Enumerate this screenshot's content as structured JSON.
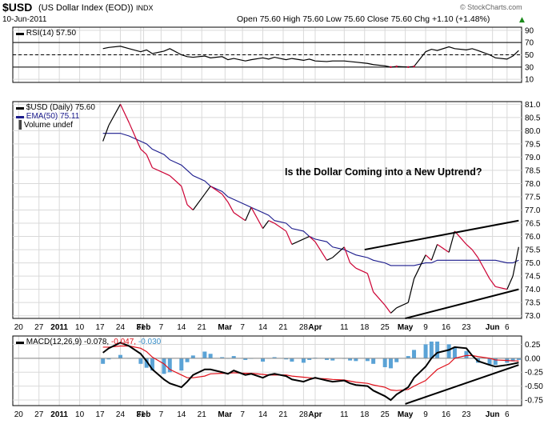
{
  "header": {
    "symbol": "$USD",
    "name": "(US Dollar Index (EOD))",
    "exchange": "INDX",
    "date": "10-Jun-2011",
    "quote": "Open 75.60  High 75.60  Low 75.60  Close 75.60  Chg +1.10 (+1.48%)",
    "quote_arrow": "▲",
    "brand": "© StockCharts.com"
  },
  "colors": {
    "price_up": "#000000",
    "price_down": "#cc0033",
    "ema": "#1a1a8c",
    "macd_line": "#000000",
    "signal_line": "#e0101a",
    "histogram": "#5ba3d6",
    "grid": "#d9d9d9",
    "frame": "#000000"
  },
  "chart_data": [
    {
      "type": "line",
      "panel": "rsi",
      "legend": "RSI(14) 57.50",
      "y_ticks": [
        10,
        30,
        50,
        70,
        90
      ],
      "ylim": [
        5,
        95
      ],
      "reference_lines": [
        30,
        50,
        70
      ],
      "x": [
        "Jan 18",
        "Jan 20",
        "Jan 24",
        "Jan 27",
        "Jan 31",
        "Feb 2",
        "Feb 4",
        "Feb 8",
        "Feb 10",
        "Feb 14",
        "Feb 16",
        "Feb 18",
        "Feb 22",
        "Feb 24",
        "Feb 28",
        "Mar 2",
        "Mar 4",
        "Mar 8",
        "Mar 10",
        "Mar 14",
        "Mar 16",
        "Mar 18",
        "Mar 22",
        "Mar 24",
        "Mar 28",
        "Mar 30",
        "Apr 1",
        "Apr 5",
        "Apr 7",
        "Apr 11",
        "Apr 13",
        "Apr 15",
        "Apr 19",
        "Apr 21",
        "Apr 25",
        "Apr 27",
        "Apr 29",
        "May 3",
        "May 5",
        "May 9",
        "May 11",
        "May 13",
        "May 17",
        "May 19",
        "May 23",
        "May 25",
        "May 27",
        "May 31",
        "Jun 2",
        "Jun 6",
        "Jun 8",
        "Jun 10"
      ],
      "values": [
        60,
        62,
        64,
        60,
        55,
        58,
        52,
        56,
        60,
        50,
        47,
        46,
        48,
        45,
        47,
        42,
        44,
        40,
        42,
        45,
        43,
        46,
        42,
        44,
        41,
        43,
        40,
        39,
        40,
        40,
        39,
        38,
        36,
        34,
        32,
        30,
        31,
        30,
        31,
        55,
        59,
        57,
        63,
        60,
        58,
        60,
        57,
        50,
        45,
        43,
        48,
        57
      ]
    },
    {
      "type": "line",
      "panel": "price",
      "legend": [
        "$USD (Daily) 75.60",
        "EMA(50) 75.11",
        "Volume undef"
      ],
      "y_ticks": [
        73.0,
        73.5,
        74.0,
        74.5,
        75.0,
        75.5,
        76.0,
        76.5,
        77.0,
        77.5,
        78.0,
        78.5,
        79.0,
        79.5,
        80.0,
        80.5,
        81.0
      ],
      "ylim": [
        72.9,
        81.1
      ],
      "annotation": "Is the Dollar Coming into a New Uptrend?",
      "x": [
        "Jan 18",
        "Jan 20",
        "Jan 24",
        "Jan 27",
        "Jan 31",
        "Feb 2",
        "Feb 4",
        "Feb 8",
        "Feb 10",
        "Feb 14",
        "Feb 16",
        "Feb 18",
        "Feb 22",
        "Feb 24",
        "Feb 28",
        "Mar 2",
        "Mar 4",
        "Mar 8",
        "Mar 10",
        "Mar 14",
        "Mar 16",
        "Mar 18",
        "Mar 22",
        "Mar 24",
        "Mar 28",
        "Mar 30",
        "Apr 1",
        "Apr 5",
        "Apr 7",
        "Apr 11",
        "Apr 13",
        "Apr 15",
        "Apr 19",
        "Apr 21",
        "Apr 25",
        "Apr 27",
        "Apr 29",
        "May 3",
        "May 5",
        "May 9",
        "May 11",
        "May 13",
        "May 17",
        "May 19",
        "May 23",
        "May 25",
        "May 27",
        "May 31",
        "Jun 2",
        "Jun 6",
        "Jun 8",
        "Jun 10"
      ],
      "series": [
        {
          "name": "$USD (Daily) 75.60",
          "values": [
            79.6,
            80.2,
            81.0,
            80.3,
            79.3,
            79.1,
            78.6,
            78.4,
            78.3,
            77.9,
            77.2,
            77.0,
            77.6,
            77.9,
            77.6,
            77.3,
            76.9,
            76.6,
            77.1,
            76.3,
            76.6,
            76.5,
            76.2,
            75.7,
            75.9,
            76.0,
            75.8,
            75.1,
            75.2,
            75.6,
            75.0,
            74.8,
            74.6,
            73.9,
            73.4,
            73.1,
            73.3,
            73.5,
            74.4,
            75.3,
            75.1,
            75.7,
            75.4,
            76.2,
            75.7,
            75.5,
            75.2,
            74.4,
            74.1,
            74.0,
            74.5,
            75.6
          ]
        },
        {
          "name": "EMA(50) 75.11",
          "values": [
            79.9,
            79.9,
            79.9,
            79.8,
            79.6,
            79.5,
            79.3,
            79.1,
            78.9,
            78.7,
            78.5,
            78.3,
            78.1,
            77.9,
            77.7,
            77.5,
            77.4,
            77.2,
            77.1,
            76.9,
            76.8,
            76.6,
            76.5,
            76.3,
            76.2,
            76.0,
            75.9,
            75.8,
            75.6,
            75.5,
            75.4,
            75.3,
            75.2,
            75.1,
            75.0,
            74.9,
            74.9,
            74.9,
            74.9,
            75.0,
            75.0,
            75.1,
            75.1,
            75.1,
            75.1,
            75.1,
            75.1,
            75.1,
            75.1,
            75.0,
            75.0,
            75.1
          ]
        }
      ],
      "trendlines": [
        {
          "name": "upper",
          "from": [
            "Apr 18",
            75.5
          ],
          "to": [
            "Jun 10",
            76.6
          ]
        },
        {
          "name": "lower",
          "from": [
            "May 2",
            72.9
          ],
          "to": [
            "Jun 10",
            74.0
          ]
        }
      ]
    },
    {
      "type": "line",
      "panel": "macd",
      "legend": {
        "label": "MACD(12,26,9)",
        "macd": "-0.078",
        "signal": "-0.047",
        "hist": "-0.030"
      },
      "y_ticks": [
        -0.75,
        -0.5,
        -0.25,
        0.0,
        0.25
      ],
      "ylim": [
        -0.85,
        0.4
      ],
      "x": [
        "Jan 18",
        "Jan 20",
        "Jan 24",
        "Jan 27",
        "Jan 31",
        "Feb 2",
        "Feb 4",
        "Feb 8",
        "Feb 10",
        "Feb 14",
        "Feb 16",
        "Feb 18",
        "Feb 22",
        "Feb 24",
        "Feb 28",
        "Mar 2",
        "Mar 4",
        "Mar 8",
        "Mar 10",
        "Mar 14",
        "Mar 16",
        "Mar 18",
        "Mar 22",
        "Mar 24",
        "Mar 28",
        "Mar 30",
        "Apr 1",
        "Apr 5",
        "Apr 7",
        "Apr 11",
        "Apr 13",
        "Apr 15",
        "Apr 19",
        "Apr 21",
        "Apr 25",
        "Apr 27",
        "Apr 29",
        "May 3",
        "May 5",
        "May 9",
        "May 11",
        "May 13",
        "May 17",
        "May 19",
        "May 23",
        "May 25",
        "May 27",
        "May 31",
        "Jun 2",
        "Jun 6",
        "Jun 8",
        "Jun 10"
      ],
      "series": [
        {
          "name": "MACD",
          "values": [
            0.1,
            0.18,
            0.28,
            0.22,
            0.08,
            -0.05,
            -0.2,
            -0.38,
            -0.45,
            -0.52,
            -0.42,
            -0.3,
            -0.2,
            -0.2,
            -0.25,
            -0.28,
            -0.22,
            -0.3,
            -0.28,
            -0.35,
            -0.3,
            -0.28,
            -0.32,
            -0.38,
            -0.42,
            -0.38,
            -0.35,
            -0.4,
            -0.42,
            -0.4,
            -0.45,
            -0.48,
            -0.5,
            -0.58,
            -0.68,
            -0.75,
            -0.65,
            -0.52,
            -0.35,
            -0.15,
            0.0,
            0.1,
            0.15,
            0.2,
            0.18,
            0.05,
            -0.05,
            -0.12,
            -0.15,
            -0.12,
            -0.1,
            -0.078
          ]
        },
        {
          "name": "Signal",
          "values": [
            0.2,
            0.2,
            0.22,
            0.22,
            0.18,
            0.12,
            0.02,
            -0.1,
            -0.2,
            -0.3,
            -0.35,
            -0.35,
            -0.32,
            -0.28,
            -0.27,
            -0.27,
            -0.26,
            -0.27,
            -0.27,
            -0.29,
            -0.3,
            -0.3,
            -0.3,
            -0.32,
            -0.34,
            -0.35,
            -0.36,
            -0.37,
            -0.38,
            -0.39,
            -0.41,
            -0.43,
            -0.45,
            -0.48,
            -0.52,
            -0.57,
            -0.58,
            -0.56,
            -0.5,
            -0.4,
            -0.3,
            -0.2,
            -0.1,
            0.0,
            0.05,
            0.05,
            0.03,
            0.0,
            -0.03,
            -0.04,
            -0.045,
            -0.047
          ]
        },
        {
          "name": "Histogram",
          "values": [
            -0.1,
            -0.02,
            0.06,
            0.0,
            -0.1,
            -0.17,
            -0.22,
            -0.28,
            -0.25,
            -0.22,
            -0.07,
            0.05,
            0.12,
            0.08,
            0.02,
            -0.01,
            0.04,
            -0.03,
            -0.01,
            -0.06,
            0.0,
            0.02,
            -0.02,
            -0.06,
            -0.08,
            -0.03,
            0.01,
            -0.03,
            -0.04,
            -0.01,
            -0.04,
            -0.05,
            -0.05,
            -0.1,
            -0.16,
            -0.18,
            -0.07,
            0.04,
            0.15,
            0.25,
            0.3,
            0.3,
            0.25,
            0.2,
            0.13,
            0.0,
            -0.08,
            -0.12,
            -0.12,
            -0.08,
            -0.055,
            -0.03
          ]
        }
      ],
      "trendline": {
        "from": [
          "May 2",
          -0.82
        ],
        "to": [
          "Jun 10",
          -0.12
        ]
      }
    }
  ],
  "x_axis": {
    "ticks": [
      {
        "label": "20",
        "bold": false,
        "at": "Dec 20"
      },
      {
        "label": "27",
        "bold": false,
        "at": "Dec 27"
      },
      {
        "label": "2011",
        "bold": true,
        "at": "Jan 3"
      },
      {
        "label": "10",
        "bold": false,
        "at": "Jan 10"
      },
      {
        "label": "17",
        "bold": false,
        "at": "Jan 17"
      },
      {
        "label": "24",
        "bold": false,
        "at": "Jan 24"
      },
      {
        "label": "31",
        "bold": false,
        "at": "Jan 31"
      },
      {
        "label": "Feb",
        "bold": true,
        "at": "Feb 1"
      },
      {
        "label": "7",
        "bold": false,
        "at": "Feb 7"
      },
      {
        "label": "14",
        "bold": false,
        "at": "Feb 14"
      },
      {
        "label": "21",
        "bold": false,
        "at": "Feb 21"
      },
      {
        "label": "Mar",
        "bold": true,
        "at": "Mar 1"
      },
      {
        "label": "7",
        "bold": false,
        "at": "Mar 7"
      },
      {
        "label": "14",
        "bold": false,
        "at": "Mar 14"
      },
      {
        "label": "21",
        "bold": false,
        "at": "Mar 21"
      },
      {
        "label": "28",
        "bold": false,
        "at": "Mar 28"
      },
      {
        "label": "Apr",
        "bold": true,
        "at": "Apr 1"
      },
      {
        "label": "11",
        "bold": false,
        "at": "Apr 11"
      },
      {
        "label": "18",
        "bold": false,
        "at": "Apr 18"
      },
      {
        "label": "25",
        "bold": false,
        "at": "Apr 25"
      },
      {
        "label": "May",
        "bold": true,
        "at": "May 2"
      },
      {
        "label": "9",
        "bold": false,
        "at": "May 9"
      },
      {
        "label": "16",
        "bold": false,
        "at": "May 16"
      },
      {
        "label": "23",
        "bold": false,
        "at": "May 23"
      },
      {
        "label": "Jun",
        "bold": true,
        "at": "Jun 1"
      },
      {
        "label": "6",
        "bold": false,
        "at": "Jun 6"
      }
    ]
  }
}
